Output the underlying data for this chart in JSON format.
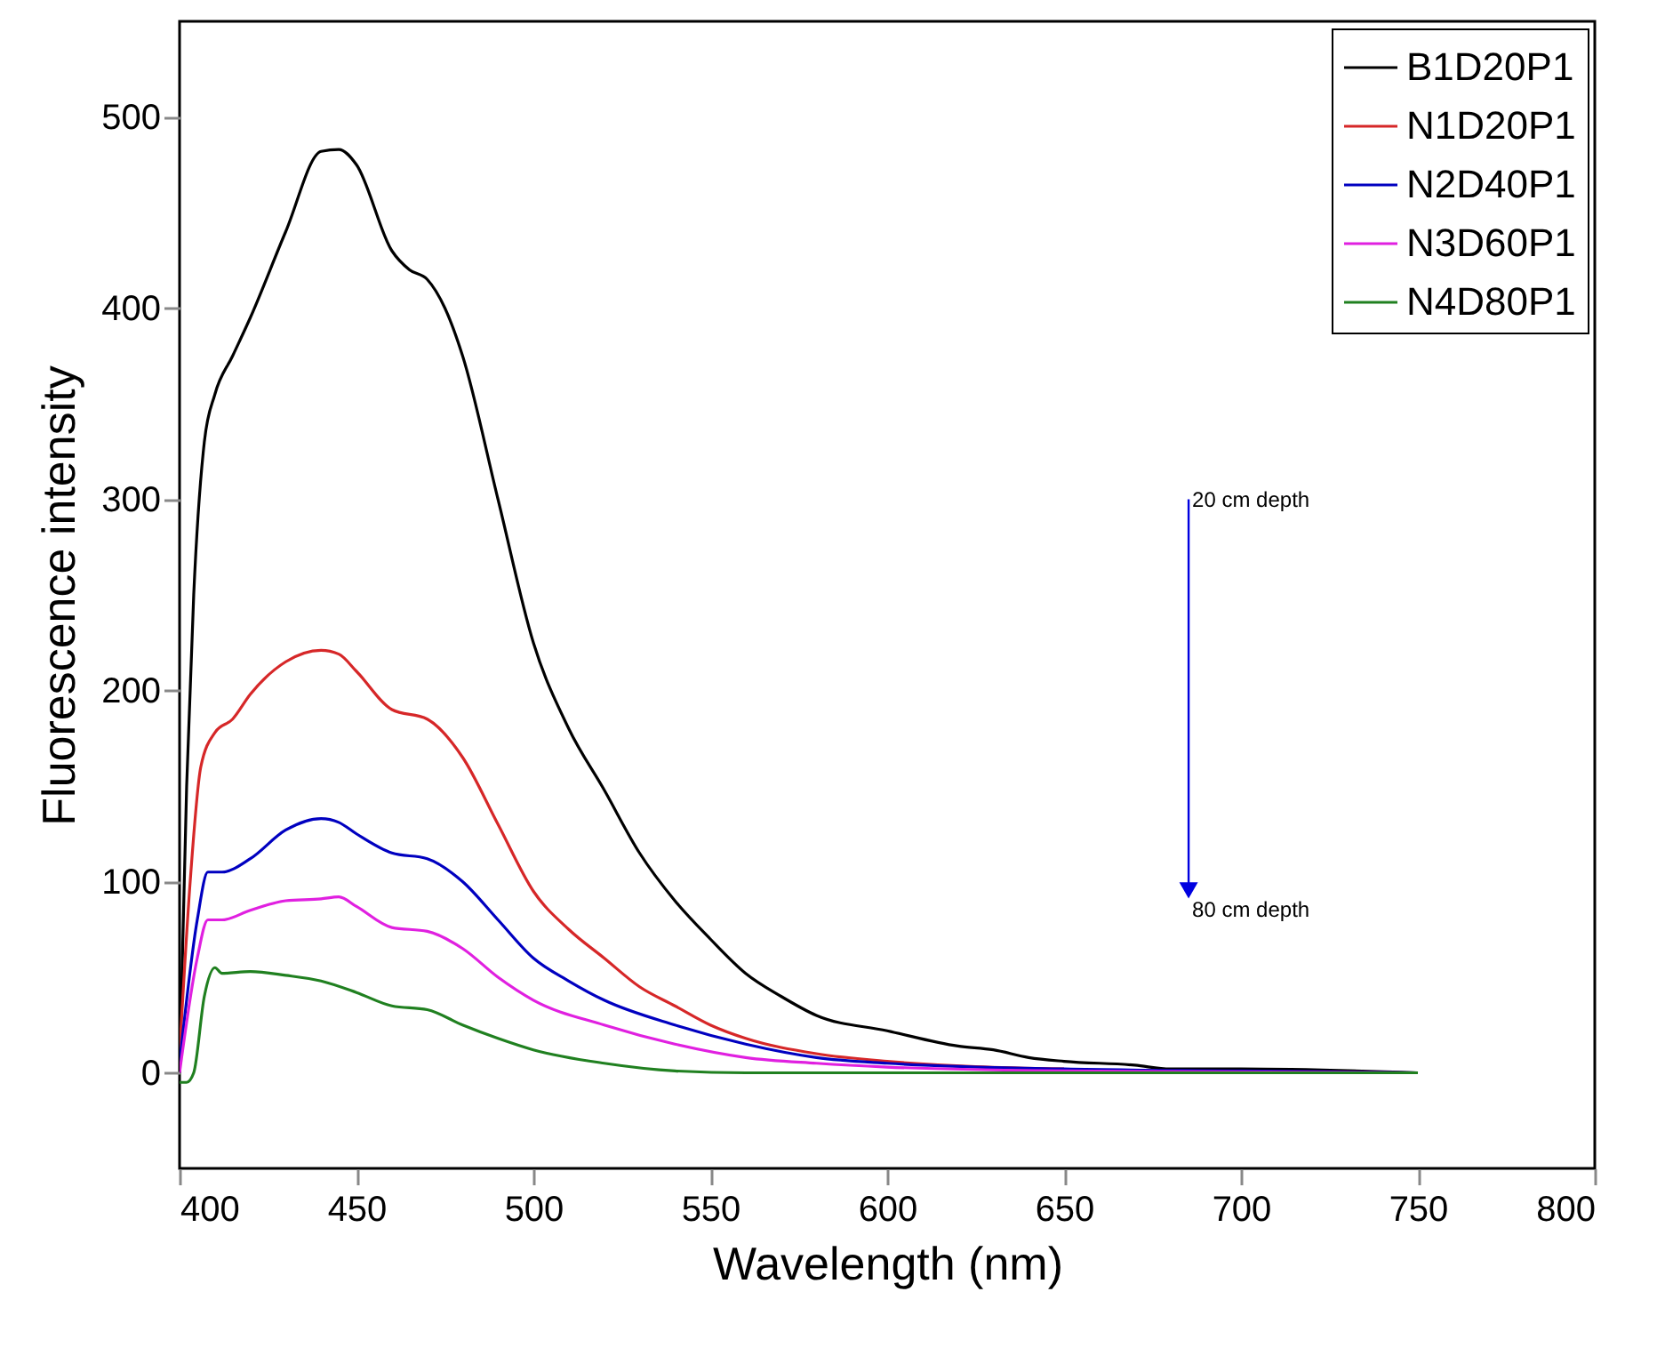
{
  "chart_data": {
    "type": "line",
    "xlabel": "Wavelength (nm)",
    "ylabel": "Fluorescence intensity",
    "xlim": [
      400,
      800
    ],
    "xticks": [
      400,
      450,
      500,
      550,
      600,
      650,
      700,
      750,
      800
    ],
    "ylim": [
      -50,
      550
    ],
    "yticks": [
      0,
      100,
      200,
      300,
      400,
      500
    ],
    "legend": "top right",
    "grid": false,
    "marker": "none",
    "line_style": "solid",
    "annotations": [
      "20 cm depth",
      "80 cm depth"
    ],
    "series": [
      {
        "name": "B1D20P1",
        "color": "#000000",
        "x": [
          400,
          402,
          404,
          407,
          410,
          415,
          420,
          430,
          440,
          445,
          450,
          460,
          465,
          470,
          475,
          480,
          490,
          500,
          510,
          520,
          530,
          540,
          550,
          560,
          570,
          580,
          600,
          620,
          630,
          640,
          650,
          670,
          680,
          700,
          750
        ],
        "values": [
          0,
          150,
          250,
          330,
          355,
          375,
          395,
          440,
          482,
          483,
          475,
          430,
          420,
          415,
          400,
          375,
          300,
          225,
          180,
          148,
          115,
          90,
          70,
          52,
          40,
          30,
          22,
          14,
          12,
          8,
          6,
          4,
          2,
          2,
          0
        ]
      },
      {
        "name": "N1D20P1",
        "color": "#d62728",
        "x": [
          400,
          403,
          406,
          410,
          415,
          420,
          430,
          440,
          445,
          450,
          460,
          470,
          480,
          490,
          500,
          510,
          520,
          530,
          540,
          550,
          560,
          580,
          600,
          650
        ],
        "values": [
          10,
          100,
          160,
          178,
          185,
          198,
          215,
          221,
          219,
          210,
          190,
          185,
          165,
          130,
          95,
          75,
          60,
          45,
          35,
          25,
          18,
          10,
          6,
          2
        ]
      },
      {
        "name": "N2D40P1",
        "color": "#0000c0",
        "x": [
          400,
          405,
          408,
          412,
          420,
          430,
          440,
          445,
          450,
          460,
          470,
          480,
          490,
          500,
          510,
          520,
          540,
          560,
          580,
          600,
          650,
          700,
          750
        ],
        "values": [
          5,
          80,
          105,
          105,
          112,
          127,
          133,
          131,
          125,
          115,
          112,
          100,
          80,
          60,
          48,
          38,
          25,
          15,
          8,
          5,
          2,
          1,
          0
        ]
      },
      {
        "name": "N3D60P1",
        "color": "#e020e0",
        "x": [
          400,
          405,
          408,
          412,
          420,
          430,
          440,
          445,
          450,
          460,
          470,
          480,
          490,
          500,
          520,
          540,
          560,
          580,
          600,
          650,
          750
        ],
        "values": [
          0,
          60,
          80,
          80,
          85,
          90,
          91,
          92,
          87,
          76,
          74,
          65,
          50,
          38,
          25,
          15,
          8,
          5,
          3,
          1,
          0
        ]
      },
      {
        "name": "N4D80P1",
        "color": "#208020",
        "x": [
          400,
          402,
          404,
          407,
          410,
          412,
          420,
          430,
          440,
          450,
          460,
          470,
          480,
          490,
          500,
          520,
          540,
          560,
          750
        ],
        "values": [
          -5,
          -5,
          0,
          40,
          55,
          52,
          53,
          51,
          48,
          42,
          35,
          33,
          25,
          18,
          12,
          5,
          1,
          0,
          0
        ]
      }
    ]
  }
}
